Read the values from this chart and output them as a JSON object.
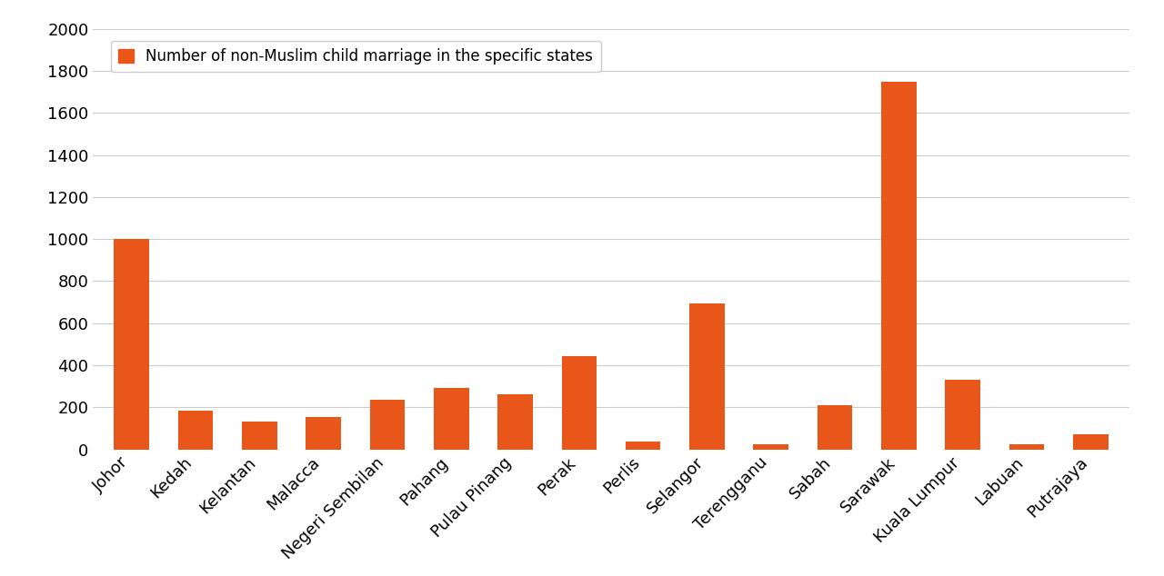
{
  "categories": [
    "Johor",
    "Kedah",
    "Kelantan",
    "Malacca",
    "Negeri Sembilan",
    "Pahang",
    "Pulau Pinang",
    "Perak",
    "Perlis",
    "Selangor",
    "Terengganu",
    "Sabah",
    "Sarawak",
    "Kuala Lumpur",
    "Labuan",
    "Putrajaya"
  ],
  "values": [
    1000,
    185,
    130,
    155,
    235,
    290,
    260,
    445,
    38,
    695,
    25,
    210,
    1750,
    330,
    22,
    70
  ],
  "bar_color": "#E8561A",
  "legend_label": "Number of non-Muslim child marriage in the specific states",
  "ylim": [
    0,
    2000
  ],
  "yticks": [
    0,
    200,
    400,
    600,
    800,
    1000,
    1200,
    1400,
    1600,
    1800,
    2000
  ],
  "background_color": "#ffffff",
  "grid_color": "#cccccc",
  "tick_color": "#000000",
  "bar_width": 0.55,
  "tick_fontsize": 13,
  "legend_fontsize": 12
}
